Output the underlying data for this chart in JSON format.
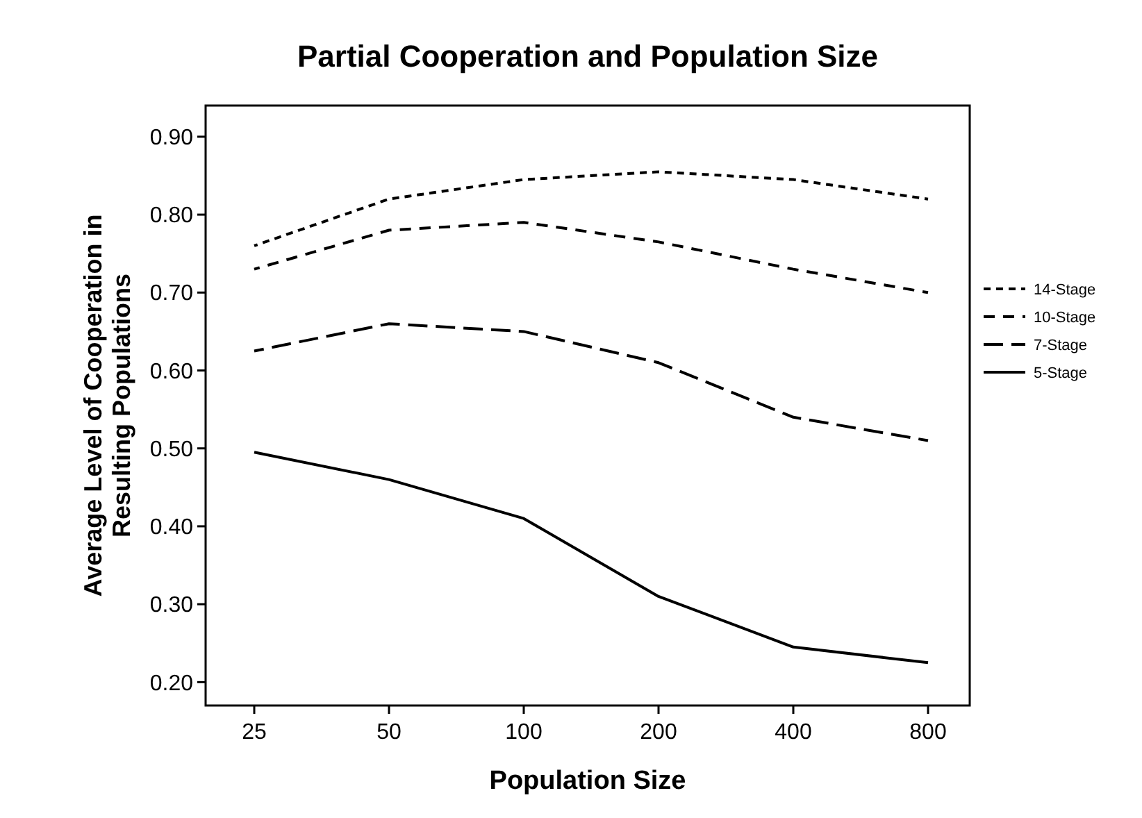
{
  "chart_data": {
    "type": "line",
    "title": "Partial Cooperation and Population Size",
    "xlabel": "Population Size",
    "ylabel": "Average Level of Cooperation in Resulting Populations",
    "categories": [
      "25",
      "50",
      "100",
      "200",
      "400",
      "800"
    ],
    "ylim": [
      0.17,
      0.94
    ],
    "yticks": [
      {
        "value": 0.2,
        "label": "0.20"
      },
      {
        "value": 0.3,
        "label": "0.30"
      },
      {
        "value": 0.4,
        "label": "0.40"
      },
      {
        "value": 0.5,
        "label": "0.50"
      },
      {
        "value": 0.6,
        "label": "0.60"
      },
      {
        "value": 0.7,
        "label": "0.70"
      },
      {
        "value": 0.8,
        "label": "0.80"
      },
      {
        "value": 0.9,
        "label": "0.90"
      }
    ],
    "grid": false,
    "legend": "right",
    "marker": "none",
    "series": [
      {
        "name": "14-Stage",
        "color": "#000000",
        "line_style": "dotted",
        "values": [
          0.76,
          0.82,
          0.845,
          0.855,
          0.845,
          0.82
        ]
      },
      {
        "name": "10-Stage",
        "color": "#000000",
        "line_style": "dashed",
        "values": [
          0.73,
          0.78,
          0.79,
          0.765,
          0.73,
          0.7
        ]
      },
      {
        "name": "7-Stage",
        "color": "#000000",
        "line_style": "dashed",
        "values": [
          0.625,
          0.66,
          0.65,
          0.61,
          0.54,
          0.51
        ]
      },
      {
        "name": "5-Stage",
        "color": "#000000",
        "line_style": "solid",
        "values": [
          0.495,
          0.46,
          0.41,
          0.31,
          0.245,
          0.225
        ]
      }
    ]
  }
}
